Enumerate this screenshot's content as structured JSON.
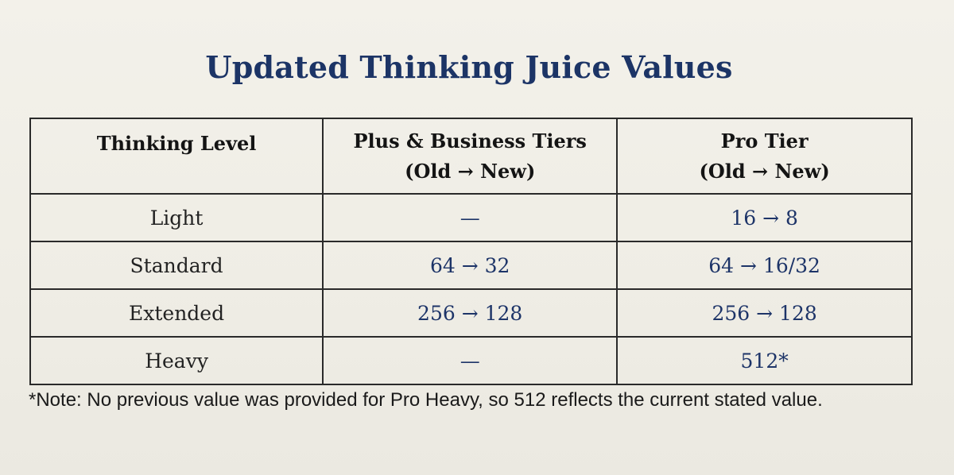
{
  "title": "Updated Thinking Juice Values",
  "table": {
    "headers": {
      "col1": "Thinking Level",
      "col2_line1": "Plus & Business Tiers",
      "col2_line2": "(Old → New)",
      "col3_line1": "Pro Tier",
      "col3_line2": "(Old → New)"
    },
    "rows": [
      {
        "level": "Light",
        "plus_business": "—",
        "pro": "16 → 8"
      },
      {
        "level": "Standard",
        "plus_business": "64 → 32",
        "pro": "64 → 16/32"
      },
      {
        "level": "Extended",
        "plus_business": "256 → 128",
        "pro": "256 → 128"
      },
      {
        "level": "Heavy",
        "plus_business": "—",
        "pro": "512*"
      }
    ]
  },
  "note": "*Note: No previous value was provided for Pro Heavy, so 512 reflects the current stated value.",
  "colors": {
    "title": "#1c3466",
    "values": "#1d3468",
    "paper": "#f2f0e8"
  }
}
